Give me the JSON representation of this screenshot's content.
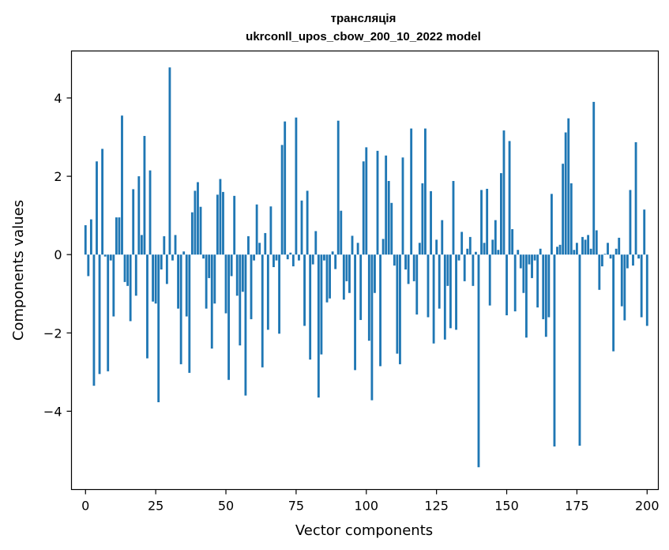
{
  "chart_data": {
    "type": "bar",
    "title": "трансляція",
    "subtitle": "ukrconll_upos_cbow_200_10_2022 model",
    "xlabel": "Vector components",
    "ylabel": "Components values",
    "xlim": [
      -5,
      204
    ],
    "ylim": [
      -6.0,
      5.2
    ],
    "xticks": [
      0,
      25,
      50,
      75,
      100,
      125,
      150,
      175,
      200
    ],
    "xtick_labels": [
      "0",
      "25",
      "50",
      "75",
      "100",
      "125",
      "150",
      "175",
      "200"
    ],
    "yticks": [
      4,
      2,
      0,
      -2,
      -4
    ],
    "ytick_labels": [
      "4",
      "2",
      "0",
      "−2",
      "−4"
    ],
    "bar_color": "#1f77b4",
    "values": [
      0.75,
      -0.55,
      0.9,
      -3.35,
      2.38,
      -3.05,
      2.7,
      -0.05,
      -2.98,
      -0.15,
      -1.58,
      0.95,
      0.95,
      3.55,
      -0.7,
      -0.8,
      -1.7,
      1.67,
      -1.05,
      2.0,
      0.5,
      3.03,
      -2.65,
      2.15,
      -1.2,
      -1.25,
      -3.77,
      -0.38,
      0.47,
      -0.75,
      4.78,
      -0.15,
      0.5,
      -1.38,
      -2.8,
      0.08,
      -1.58,
      -3.02,
      1.08,
      1.63,
      1.85,
      1.22,
      -0.1,
      -1.38,
      -0.6,
      -2.4,
      -1.25,
      1.53,
      1.93,
      1.6,
      -1.5,
      -3.2,
      -0.55,
      1.5,
      -1.05,
      -2.32,
      -0.95,
      -3.6,
      0.47,
      -1.65,
      -0.15,
      1.28,
      0.3,
      -2.88,
      0.55,
      -1.92,
      1.23,
      -0.32,
      -0.15,
      -2.02,
      2.8,
      3.4,
      -0.12,
      0.05,
      -0.3,
      3.5,
      -0.15,
      1.38,
      -1.82,
      1.63,
      -2.68,
      -0.25,
      0.6,
      -3.65,
      -2.55,
      -0.15,
      -1.22,
      -1.12,
      0.08,
      -0.37,
      3.42,
      1.12,
      -1.15,
      -0.68,
      -0.98,
      0.48,
      -2.95,
      0.3,
      -1.67,
      2.38,
      2.74,
      -2.2,
      -3.72,
      -0.98,
      2.65,
      -2.85,
      0.4,
      2.53,
      1.88,
      1.32,
      -0.28,
      -2.53,
      -2.8,
      2.48,
      -0.38,
      -0.75,
      3.22,
      -0.68,
      -1.53,
      0.3,
      1.82,
      3.22,
      -1.6,
      1.62,
      -2.27,
      0.38,
      -1.38,
      0.88,
      -2.17,
      -0.8,
      -1.88,
      1.88,
      -1.92,
      -0.15,
      0.58,
      -0.68,
      0.15,
      0.45,
      -0.8,
      0.07,
      -5.43,
      1.65,
      0.3,
      1.68,
      -1.3,
      0.38,
      0.88,
      0.12,
      2.08,
      3.17,
      -1.55,
      2.9,
      0.65,
      -1.45,
      0.12,
      -0.35,
      -0.98,
      -2.12,
      -0.25,
      -0.6,
      -0.15,
      -1.35,
      0.15,
      -1.65,
      -2.1,
      -1.6,
      1.55,
      -4.9,
      0.2,
      0.25,
      2.32,
      3.12,
      3.48,
      1.82,
      0.12,
      0.3,
      -4.88,
      0.45,
      0.38,
      0.5,
      0.15,
      3.9,
      0.62,
      -0.9,
      -0.3,
      0.02,
      0.3,
      -0.1,
      -2.47,
      0.15,
      0.43,
      -1.32,
      -1.68,
      -0.35,
      1.65,
      -0.28,
      2.87,
      -0.1,
      -1.6,
      1.15,
      -1.82
    ]
  }
}
